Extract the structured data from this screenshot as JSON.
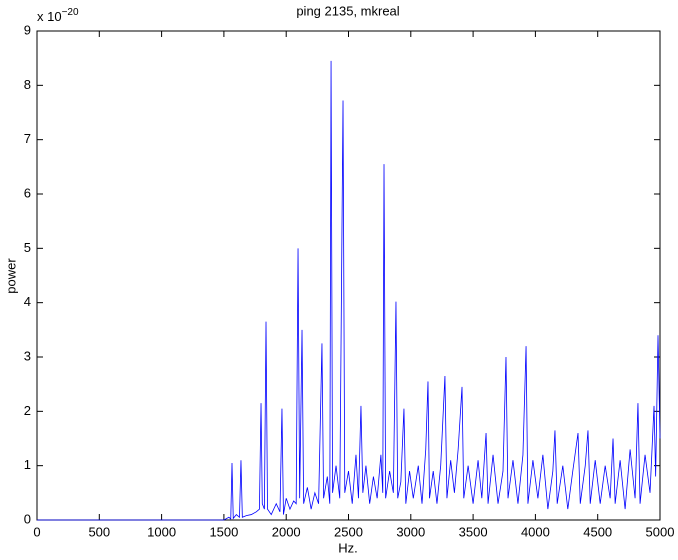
{
  "chart_data": {
    "type": "line",
    "title": "ping 2135, mkreal",
    "xlabel": "Hz.",
    "ylabel": "power",
    "y_multiplier": {
      "base": "x 10",
      "exponent": "−20"
    },
    "xlim": [
      0,
      5000
    ],
    "ylim": [
      0,
      9
    ],
    "xticks": [
      0,
      500,
      1000,
      1500,
      2000,
      2500,
      3000,
      3500,
      4000,
      4500,
      5000
    ],
    "yticks": [
      0,
      1,
      2,
      3,
      4,
      5,
      6,
      7,
      8,
      9
    ],
    "grid": false,
    "x": [
      0,
      1500,
      1540,
      1555,
      1565,
      1575,
      1600,
      1625,
      1637,
      1648,
      1680,
      1720,
      1760,
      1785,
      1798,
      1808,
      1825,
      1838,
      1850,
      1880,
      1920,
      1950,
      1966,
      1978,
      2000,
      2030,
      2060,
      2080,
      2095,
      2108,
      2127,
      2140,
      2170,
      2200,
      2230,
      2260,
      2287,
      2300,
      2330,
      2350,
      2360,
      2372,
      2400,
      2430,
      2456,
      2470,
      2500,
      2530,
      2560,
      2580,
      2600,
      2615,
      2640,
      2670,
      2700,
      2730,
      2760,
      2775,
      2785,
      2798,
      2830,
      2860,
      2881,
      2895,
      2920,
      2945,
      2960,
      2990,
      3020,
      3060,
      3090,
      3120,
      3138,
      3150,
      3180,
      3210,
      3240,
      3274,
      3290,
      3320,
      3350,
      3380,
      3411,
      3425,
      3460,
      3500,
      3540,
      3570,
      3604,
      3620,
      3660,
      3700,
      3740,
      3764,
      3780,
      3820,
      3860,
      3900,
      3925,
      3940,
      3980,
      4020,
      4060,
      4100,
      4140,
      4157,
      4175,
      4220,
      4260,
      4300,
      4342,
      4360,
      4400,
      4422,
      4440,
      4480,
      4520,
      4560,
      4600,
      4623,
      4640,
      4680,
      4720,
      4760,
      4800,
      4823,
      4840,
      4880,
      4920,
      4952,
      4965,
      4984,
      5000
    ],
    "series": [
      {
        "name": "power",
        "color": "#0000ff",
        "values": [
          0,
          0,
          0.05,
          0.02,
          1.05,
          0.03,
          0.1,
          0.05,
          1.1,
          0.05,
          0.08,
          0.1,
          0.15,
          0.2,
          2.15,
          0.3,
          0.2,
          3.65,
          0.2,
          0.1,
          0.3,
          0.15,
          2.05,
          0.1,
          0.4,
          0.2,
          0.35,
          0.3,
          5.0,
          0.4,
          3.5,
          0.3,
          0.6,
          0.2,
          0.5,
          0.3,
          3.25,
          0.4,
          0.8,
          0.3,
          8.45,
          0.5,
          1.0,
          0.4,
          7.72,
          0.5,
          0.9,
          0.3,
          1.2,
          0.4,
          2.1,
          0.5,
          1.0,
          0.3,
          0.8,
          0.4,
          1.2,
          0.5,
          6.55,
          0.4,
          0.9,
          0.5,
          4.02,
          0.4,
          0.7,
          2.05,
          0.3,
          0.9,
          0.4,
          1.0,
          0.3,
          1.3,
          2.55,
          0.4,
          0.9,
          0.3,
          1.0,
          2.65,
          0.4,
          1.1,
          0.5,
          1.3,
          2.45,
          0.4,
          1.0,
          0.3,
          1.1,
          0.4,
          1.6,
          0.3,
          1.2,
          0.3,
          0.9,
          3.0,
          0.4,
          1.1,
          0.3,
          1.2,
          3.2,
          0.3,
          1.1,
          0.4,
          1.2,
          0.2,
          0.9,
          1.65,
          0.3,
          1.0,
          0.2,
          0.9,
          1.6,
          0.3,
          1.0,
          1.65,
          0.3,
          1.1,
          0.3,
          1.0,
          0.4,
          1.5,
          0.3,
          1.1,
          0.2,
          1.3,
          0.4,
          2.15,
          0.3,
          1.2,
          0.5,
          2.1,
          0.8,
          3.4,
          1.5
        ]
      }
    ]
  }
}
